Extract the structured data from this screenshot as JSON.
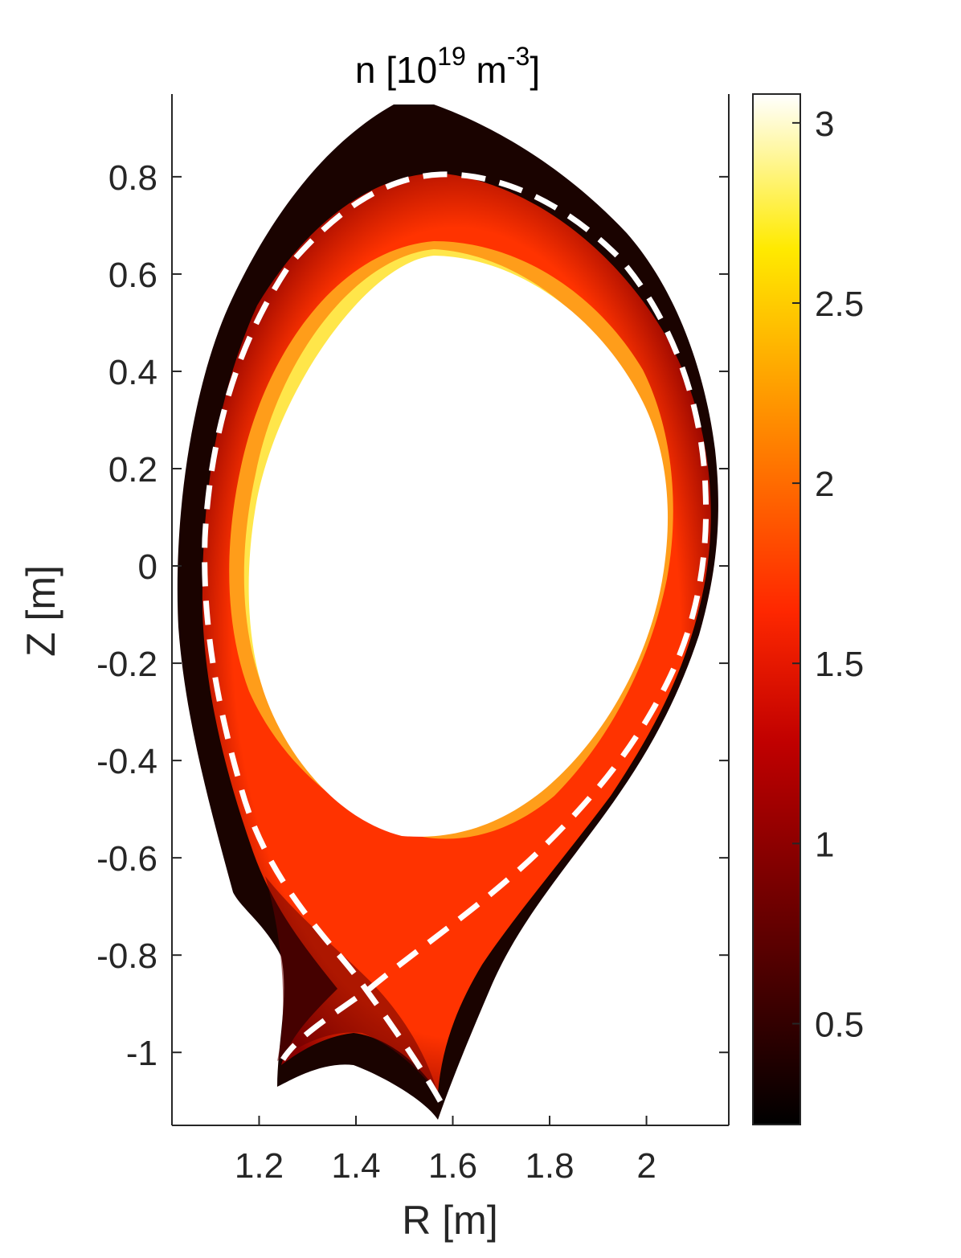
{
  "chart_data": {
    "type": "heatmap",
    "title": {
      "main": "n [10",
      "exp1": "19",
      "unit": " m",
      "exp2": "-3",
      "close": "]"
    },
    "xlabel": "R [m]",
    "ylabel": "Z [m]",
    "xlim": [
      1.02,
      2.17
    ],
    "ylim": [
      -1.15,
      0.97
    ],
    "x_ticks": [
      1.2,
      1.4,
      1.6,
      1.8,
      2.0
    ],
    "x_tick_labels": [
      "1.2",
      "1.4",
      "1.6",
      "1.8",
      "2"
    ],
    "y_ticks": [
      0.8,
      0.6,
      0.4,
      0.2,
      0.0,
      -0.2,
      -0.4,
      -0.6,
      -0.8,
      -1.0
    ],
    "y_tick_labels": [
      "0.8",
      "0.6",
      "0.4",
      "0.2",
      "0",
      "-0.2",
      "-0.4",
      "-0.6",
      "-0.8",
      "-1"
    ],
    "colorbar": {
      "colormap": "hot",
      "range": [
        0.22,
        3.08
      ],
      "ticks": [
        0.5,
        1.0,
        1.5,
        2.0,
        2.5,
        3.0
      ],
      "tick_labels": [
        "0.5",
        "1",
        "1.5",
        "2",
        "2.5",
        "3"
      ]
    },
    "separatrix": {
      "style": "dashed",
      "color": "#ffffff",
      "x_point": [
        1.45,
        -0.91
      ]
    },
    "colors": {
      "low": "#0a0000",
      "mid": "#ff2a00",
      "high": "#ffff60",
      "max": "#ffffff"
    }
  }
}
